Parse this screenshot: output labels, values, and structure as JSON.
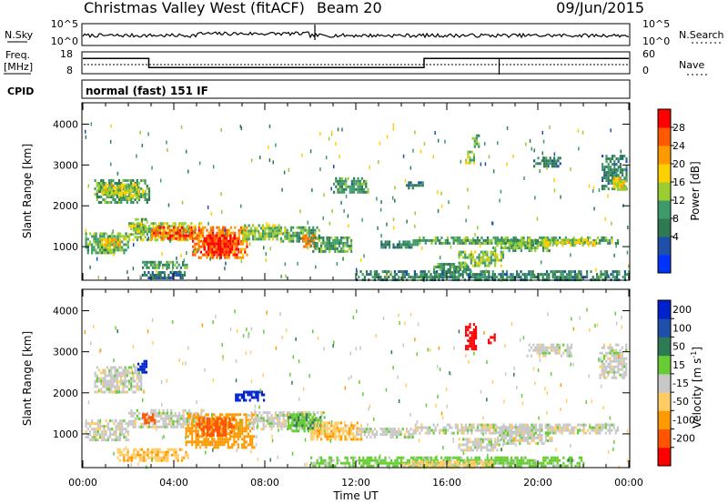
{
  "header": {
    "title": "Christmas Valley West (fitACF)",
    "beam": "Beam 20",
    "date": "09/Jun/2015"
  },
  "status_panels": {
    "nsky": {
      "label": "N.Sky",
      "ticks": [
        "10^5",
        "10^0"
      ],
      "right_ticks": [
        "10^5",
        "10^0"
      ],
      "right_label": "N.Search"
    },
    "freq": {
      "label_line1": "Freq.",
      "label_line2": "[MHz]",
      "ticks": [
        "18",
        "8"
      ],
      "right_ticks": [
        "60",
        "0"
      ],
      "right_label": "Nave",
      "freq_steps": [
        {
          "t0": 0.0,
          "t1": 2.9,
          "mhz": 15.2
        },
        {
          "t0": 2.9,
          "t1": 15.0,
          "mhz": 10.6
        },
        {
          "t0": 15.0,
          "t1": 24.0,
          "mhz": 15.2
        }
      ]
    },
    "cpid": {
      "label": "CPID",
      "text": "normal (fast) 151 IF"
    }
  },
  "colors": {
    "power": [
      "#0033ff",
      "#1f4fa8",
      "#2e7a52",
      "#3f9a6a",
      "#9acd32",
      "#ffd000",
      "#ff9900",
      "#ff5a00",
      "#ff0000"
    ],
    "velocity": [
      "#0022cc",
      "#1f4fa8",
      "#2e7a52",
      "#66cc33",
      "#c8c8c8",
      "#ffcc66",
      "#ff9900",
      "#ff5500",
      "#ff0000"
    ]
  },
  "chart_data": [
    {
      "type": "heatmap",
      "name": "power",
      "ylabel": "Slant Range [km]",
      "ylim": [
        200,
        4500
      ],
      "xlim": [
        0,
        24
      ],
      "yticks": [
        "4000",
        "3000",
        "2000",
        "1000"
      ],
      "colorbar": {
        "label": "Power [dB]",
        "ticks": [
          "28",
          "24",
          "20",
          "16",
          "12",
          "8",
          "4"
        ],
        "range": [
          0,
          32
        ]
      },
      "regions": [
        {
          "t0": 0.1,
          "t1": 2.0,
          "r0": 850,
          "r1": 1350,
          "v": 14
        },
        {
          "t0": 0.8,
          "t1": 1.6,
          "r0": 1000,
          "r1": 1200,
          "v": 20
        },
        {
          "t0": 0.5,
          "t1": 2.9,
          "r0": 2050,
          "r1": 2650,
          "v": 12
        },
        {
          "t0": 0.8,
          "t1": 2.0,
          "r0": 2250,
          "r1": 2550,
          "v": 19
        },
        {
          "t0": 1.8,
          "t1": 2.6,
          "r0": 2200,
          "r1": 2550,
          "v": 17
        },
        {
          "t0": 2.2,
          "t1": 2.8,
          "r0": 1300,
          "r1": 1700,
          "v": 12
        },
        {
          "t0": 2.0,
          "t1": 5.2,
          "r0": 1150,
          "r1": 1600,
          "v": 16
        },
        {
          "t0": 3.0,
          "t1": 4.8,
          "r0": 1200,
          "r1": 1500,
          "v": 26
        },
        {
          "t0": 4.8,
          "t1": 7.2,
          "r0": 700,
          "r1": 1500,
          "v": 25
        },
        {
          "t0": 5.3,
          "t1": 6.8,
          "r0": 800,
          "r1": 1300,
          "v": 30
        },
        {
          "t0": 7.0,
          "t1": 9.0,
          "r0": 1150,
          "r1": 1550,
          "v": 15
        },
        {
          "t0": 8.5,
          "t1": 10.4,
          "r0": 1150,
          "r1": 1500,
          "v": 13
        },
        {
          "t0": 9.6,
          "t1": 10.3,
          "r0": 1000,
          "r1": 1300,
          "v": 24
        },
        {
          "t0": 10.0,
          "t1": 11.8,
          "r0": 850,
          "r1": 1250,
          "v": 12
        },
        {
          "t0": 2.6,
          "t1": 4.6,
          "r0": 500,
          "r1": 650,
          "v": 13
        },
        {
          "t0": 2.5,
          "t1": 4.5,
          "r0": 250,
          "r1": 400,
          "v": 8
        },
        {
          "t0": 13.0,
          "t1": 14.8,
          "r0": 950,
          "r1": 1150,
          "v": 10
        },
        {
          "t0": 15.4,
          "t1": 17.0,
          "r0": 300,
          "r1": 600,
          "v": 12
        },
        {
          "t0": 16.5,
          "t1": 18.5,
          "r0": 550,
          "r1": 900,
          "v": 15
        },
        {
          "t0": 18.0,
          "t1": 20.5,
          "r0": 900,
          "r1": 1200,
          "v": 14
        },
        {
          "t0": 14.5,
          "t1": 23.5,
          "r0": 1050,
          "r1": 1250,
          "v": 13
        },
        {
          "t0": 20.0,
          "t1": 22.5,
          "r0": 1050,
          "r1": 1200,
          "v": 18
        },
        {
          "t0": 16.8,
          "t1": 17.2,
          "r0": 3050,
          "r1": 3350,
          "v": 16
        },
        {
          "t0": 17.1,
          "t1": 17.4,
          "r0": 3450,
          "r1": 3750,
          "v": 14
        },
        {
          "t0": 19.8,
          "t1": 21.0,
          "r0": 2950,
          "r1": 3200,
          "v": 9
        },
        {
          "t0": 22.8,
          "t1": 23.9,
          "r0": 2400,
          "r1": 3250,
          "v": 10
        },
        {
          "t0": 23.3,
          "t1": 23.9,
          "r0": 2400,
          "r1": 2700,
          "v": 18
        },
        {
          "t0": 11.0,
          "t1": 12.5,
          "r0": 2350,
          "r1": 2700,
          "v": 11
        },
        {
          "t0": 14.2,
          "t1": 15.0,
          "r0": 2450,
          "r1": 2600,
          "v": 9
        },
        {
          "t0": 12.0,
          "t1": 24.0,
          "r0": 200,
          "r1": 420,
          "v": 10
        }
      ]
    },
    {
      "type": "heatmap",
      "name": "velocity",
      "ylabel": "Slant Range [km]",
      "xlabel": "Time UT",
      "ylim": [
        200,
        4500
      ],
      "xlim": [
        0,
        24
      ],
      "yticks": [
        "4000",
        "3000",
        "2000",
        "1000"
      ],
      "xticks": [
        "00:00",
        "04:00",
        "08:00",
        "12:00",
        "16:00",
        "20:00",
        "00:00"
      ],
      "colorbar": {
        "label": "Velocity [m s",
        "label_sup": "-1",
        "label_end": "]",
        "ticks": [
          "200",
          "100",
          "50",
          "15",
          "-15",
          "-50",
          "-100",
          "-200"
        ],
        "range": [
          -250,
          250
        ]
      },
      "regions": [
        {
          "t0": 0.1,
          "t1": 2.0,
          "r0": 850,
          "r1": 1350,
          "v": 0
        },
        {
          "t0": 0.5,
          "t1": 2.6,
          "r0": 2050,
          "r1": 2650,
          "v": 0
        },
        {
          "t0": 2.4,
          "t1": 2.8,
          "r0": 2500,
          "r1": 2800,
          "v": 220
        },
        {
          "t0": 2.0,
          "t1": 5.5,
          "r0": 1150,
          "r1": 1600,
          "v": 0
        },
        {
          "t0": 4.5,
          "t1": 7.5,
          "r0": 700,
          "r1": 1500,
          "v": -80
        },
        {
          "t0": 5.0,
          "t1": 6.6,
          "r0": 1000,
          "r1": 1400,
          "v": -130
        },
        {
          "t0": 2.6,
          "t1": 3.2,
          "r0": 1250,
          "r1": 1500,
          "v": -180
        },
        {
          "t0": 7.2,
          "t1": 10.6,
          "r0": 1150,
          "r1": 1550,
          "v": 0
        },
        {
          "t0": 9.0,
          "t1": 10.6,
          "r0": 1100,
          "r1": 1500,
          "v": 40
        },
        {
          "t0": 10.0,
          "t1": 12.2,
          "r0": 850,
          "r1": 1300,
          "v": -40
        },
        {
          "t0": 1.5,
          "t1": 4.6,
          "r0": 350,
          "r1": 650,
          "v": -40
        },
        {
          "t0": 6.6,
          "t1": 8.0,
          "r0": 1850,
          "r1": 2050,
          "v": 220
        },
        {
          "t0": 16.5,
          "t1": 18.5,
          "r0": 600,
          "r1": 900,
          "v": 0
        },
        {
          "t0": 18.2,
          "t1": 20.6,
          "r0": 800,
          "r1": 1200,
          "v": 0
        },
        {
          "t0": 14.5,
          "t1": 23.5,
          "r0": 1050,
          "r1": 1250,
          "v": 0
        },
        {
          "t0": 16.8,
          "t1": 17.3,
          "r0": 3100,
          "r1": 3700,
          "v": -230
        },
        {
          "t0": 17.8,
          "t1": 18.1,
          "r0": 3250,
          "r1": 3450,
          "v": -230
        },
        {
          "t0": 19.5,
          "t1": 21.5,
          "r0": 2900,
          "r1": 3200,
          "v": 0
        },
        {
          "t0": 22.7,
          "t1": 23.9,
          "r0": 2400,
          "r1": 3200,
          "v": 0
        },
        {
          "t0": 12.0,
          "t1": 14.5,
          "r0": 950,
          "r1": 1150,
          "v": 0
        },
        {
          "t0": 10.0,
          "t1": 22.0,
          "r0": 200,
          "r1": 450,
          "v": 30
        },
        {
          "t0": 14.0,
          "t1": 18.0,
          "r0": 200,
          "r1": 350,
          "v": -30
        }
      ]
    }
  ]
}
